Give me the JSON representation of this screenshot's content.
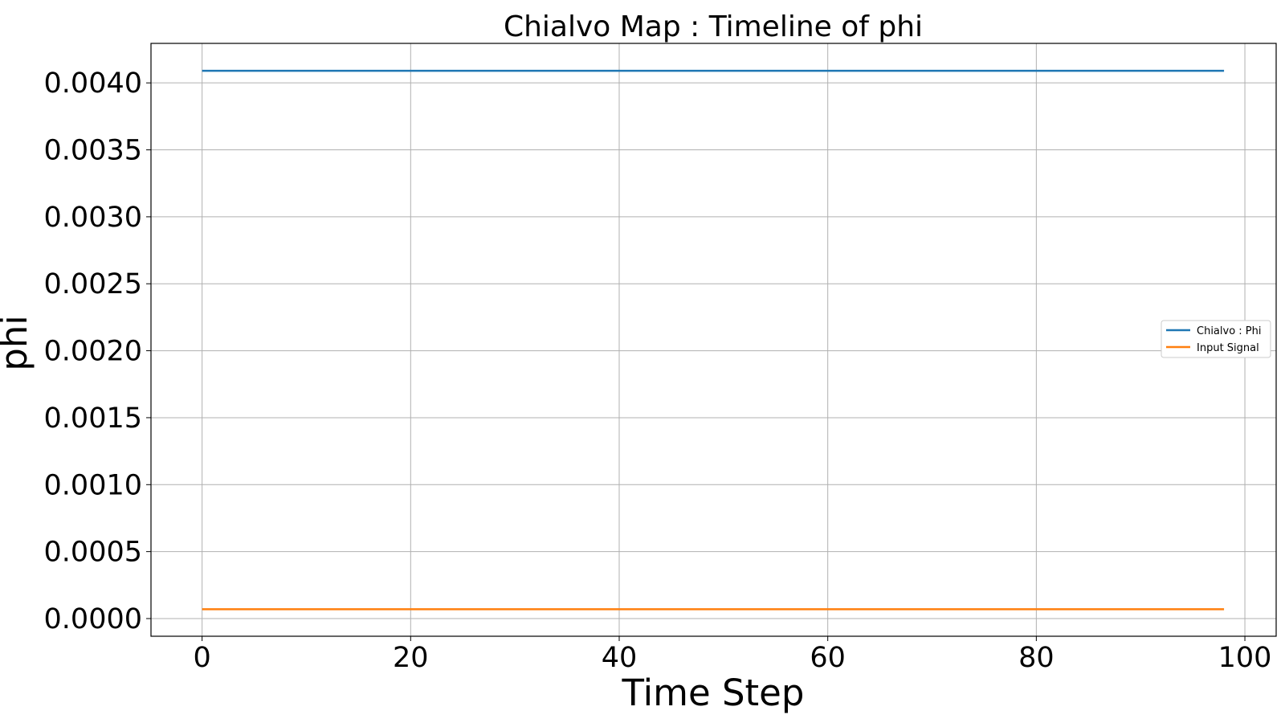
{
  "chart_data": {
    "type": "line",
    "title": "Chialvo Map : Timeline of phi",
    "xlabel": "Time Step",
    "ylabel": "phi",
    "xlim": [
      -4.9,
      103
    ],
    "ylim": [
      -0.000132,
      0.004295
    ],
    "xticks": [
      0,
      20,
      40,
      60,
      80,
      100
    ],
    "xtick_labels": [
      "0",
      "20",
      "40",
      "60",
      "80",
      "100"
    ],
    "yticks": [
      0.0,
      0.0005,
      0.001,
      0.0015,
      0.002,
      0.0025,
      0.003,
      0.0035,
      0.004
    ],
    "ytick_labels": [
      "0.0000",
      "0.0005",
      "0.0010",
      "0.0015",
      "0.0020",
      "0.0025",
      "0.0030",
      "0.0035",
      "0.0040"
    ],
    "grid": true,
    "legend_position": "center-right",
    "series": [
      {
        "name": "Chialvo : Phi",
        "color": "#1f77b4",
        "x": [
          0,
          98
        ],
        "y": [
          0.00409,
          0.00409
        ]
      },
      {
        "name": "Input Signal",
        "color": "#ff7f0e",
        "x": [
          0,
          98
        ],
        "y": [
          7e-05,
          7e-05
        ]
      }
    ]
  }
}
